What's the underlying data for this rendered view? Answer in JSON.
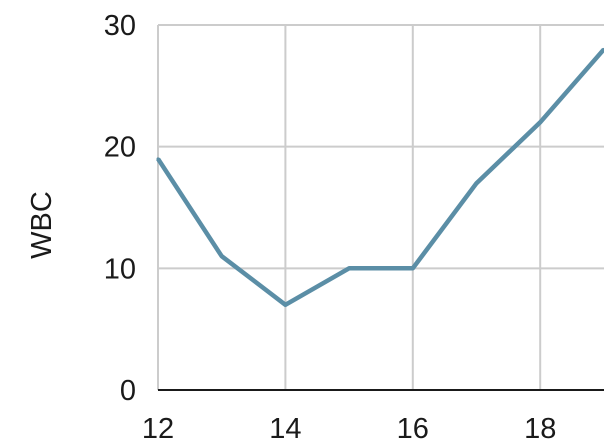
{
  "chart_data": {
    "type": "line",
    "title": "",
    "xlabel": "",
    "ylabel": "WBC",
    "xlim": [
      12,
      19
    ],
    "ylim": [
      0,
      30
    ],
    "x_ticks": [
      12,
      14,
      16,
      18
    ],
    "y_ticks": [
      0,
      10,
      20,
      30
    ],
    "x_tick_labels": [
      "12",
      "14",
      "16",
      "18"
    ],
    "y_tick_labels": [
      "0",
      "10",
      "20",
      "30"
    ],
    "grid": true,
    "legend": "none",
    "series": [
      {
        "x": [
          12,
          13,
          14,
          15,
          16,
          17,
          18,
          19
        ],
        "values": [
          19,
          11,
          7,
          10,
          10,
          17,
          22,
          28
        ],
        "color": "#5b8ea6"
      }
    ],
    "colors": {
      "line": "#5b8ea6",
      "grid": "#cccccc",
      "axis": "#1a1a1a"
    }
  }
}
